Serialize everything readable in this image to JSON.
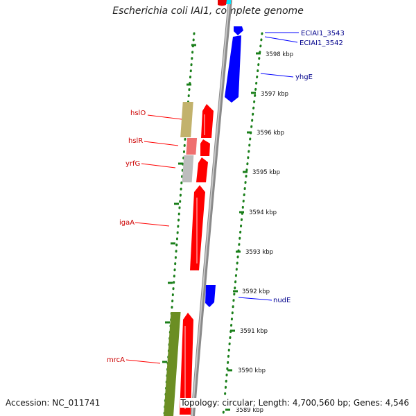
{
  "title": "Escherichia coli IAI1, complete genome",
  "footer": {
    "accession": "Accession: NC_011741",
    "topology": "Topology: circular; Length: 4,700,560 bp; Genes: 4,546"
  },
  "colors": {
    "forward": "#ff0000",
    "reverse": "#0000ff",
    "ticks": "#1a7f1a",
    "backbone": "#8a8a8a"
  },
  "scale_labels": [
    "3598 kbp",
    "3597 kbp",
    "3596 kbp",
    "3595 kbp",
    "3594 kbp",
    "3593 kbp",
    "3592 kbp",
    "3591 kbp",
    "3590 kbp",
    "3589 kbp"
  ],
  "gene_labels": {
    "left": [
      "hslO",
      "hslR",
      "yrfG",
      "igaA",
      "mrcA"
    ],
    "right": [
      "ECIAI1_3543",
      "ECIAI1_3542",
      "yhgE",
      "nudE"
    ]
  }
}
